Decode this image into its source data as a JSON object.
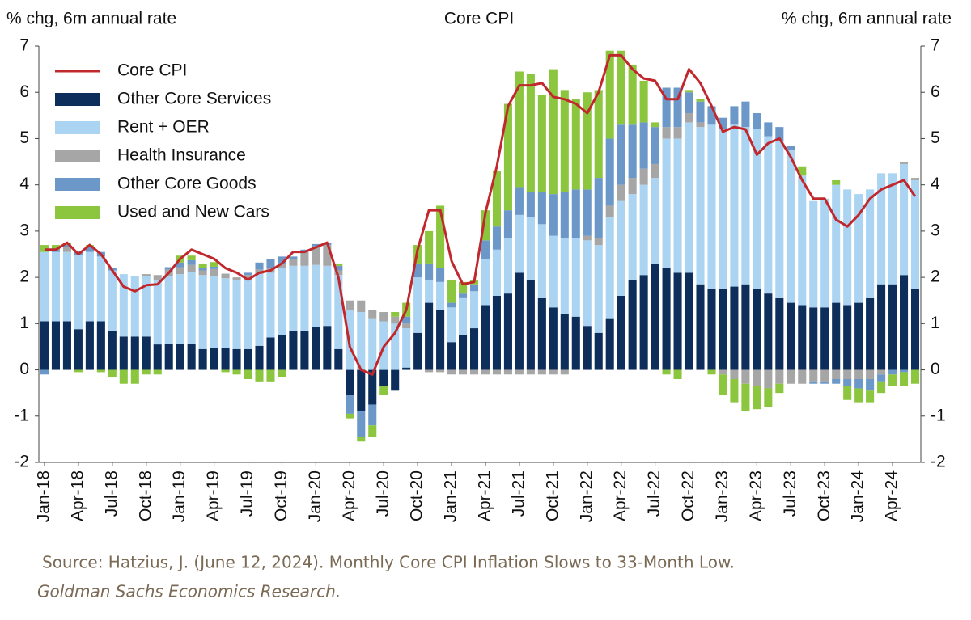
{
  "chart_data": {
    "type": "bar",
    "stacked": true,
    "title": "Core CPI",
    "y_label": "% chg, 6m annual rate",
    "y2_label": "% chg, 6m annual rate",
    "categories": [
      "Jan-18",
      null,
      null,
      "Apr-18",
      null,
      null,
      "Jul-18",
      null,
      null,
      "Oct-18",
      null,
      null,
      "Jan-19",
      null,
      null,
      "Apr-19",
      null,
      null,
      "Jul-19",
      null,
      null,
      "Oct-19",
      null,
      null,
      "Jan-20",
      null,
      null,
      "Apr-20",
      null,
      null,
      "Jul-20",
      null,
      null,
      "Oct-20",
      null,
      null,
      "Jan-21",
      null,
      null,
      "Apr-21",
      null,
      null,
      "Jul-21",
      null,
      null,
      "Oct-21",
      null,
      null,
      "Jan-22",
      null,
      null,
      "Apr-22",
      null,
      null,
      "Jul-22",
      null,
      null,
      "Oct-22",
      null,
      null,
      "Jan-23",
      null,
      null,
      "Apr-23",
      null,
      null,
      "Jul-23",
      null,
      null,
      "Oct-23",
      null,
      null,
      "Jan-24",
      null,
      null,
      "Apr-24",
      null,
      null
    ],
    "series": [
      {
        "name": "Core CPI",
        "type": "line",
        "color": "#c0282d",
        "values": [
          2.6,
          2.6,
          2.75,
          2.5,
          2.7,
          2.5,
          2.15,
          1.8,
          1.7,
          1.83,
          1.85,
          2.1,
          2.4,
          2.6,
          2.5,
          2.4,
          2.2,
          2.1,
          1.95,
          2.1,
          2.15,
          2.3,
          2.55,
          2.55,
          2.65,
          2.75,
          2.0,
          0.5,
          0.0,
          -0.1,
          0.5,
          0.8,
          1.3,
          2.6,
          3.45,
          3.45,
          2.35,
          1.85,
          1.9,
          3.4,
          4.4,
          5.7,
          6.15,
          6.15,
          6.2,
          5.9,
          5.85,
          5.75,
          5.55,
          6.0,
          6.8,
          6.8,
          6.5,
          6.3,
          6.25,
          5.85,
          5.85,
          6.5,
          6.2,
          5.7,
          5.15,
          5.25,
          5.2,
          4.65,
          4.9,
          5.0,
          4.6,
          4.1,
          3.7,
          3.7,
          3.25,
          3.1,
          3.35,
          3.7,
          3.9,
          4.0,
          4.1,
          3.75
        ]
      },
      {
        "name": "Other Core Services",
        "type": "bar",
        "color": "#0d2d5a",
        "values": [
          1.05,
          1.05,
          1.05,
          0.88,
          1.05,
          1.05,
          0.85,
          0.72,
          0.72,
          0.72,
          0.55,
          0.57,
          0.57,
          0.57,
          0.45,
          0.48,
          0.48,
          0.45,
          0.45,
          0.52,
          0.7,
          0.75,
          0.85,
          0.85,
          0.92,
          0.95,
          0.45,
          -0.55,
          -0.9,
          -0.75,
          -0.35,
          -0.45,
          0.05,
          0.8,
          1.45,
          1.3,
          0.6,
          0.75,
          0.9,
          1.4,
          1.6,
          1.65,
          2.1,
          1.95,
          1.55,
          1.35,
          1.2,
          1.15,
          0.95,
          0.8,
          1.1,
          1.6,
          1.95,
          2.05,
          2.3,
          2.2,
          2.1,
          2.1,
          1.85,
          1.75,
          1.75,
          1.8,
          1.85,
          1.75,
          1.65,
          1.55,
          1.45,
          1.4,
          1.35,
          1.35,
          1.45,
          1.4,
          1.45,
          1.55,
          1.85,
          1.85,
          2.05,
          1.75
        ]
      },
      {
        "name": "Rent + OER",
        "type": "bar",
        "color": "#aad4f1",
        "values": [
          1.5,
          1.5,
          1.5,
          1.6,
          1.5,
          1.4,
          1.3,
          1.35,
          1.3,
          1.3,
          1.4,
          1.45,
          1.5,
          1.55,
          1.6,
          1.55,
          1.5,
          1.5,
          1.5,
          1.55,
          1.4,
          1.45,
          1.4,
          1.4,
          1.35,
          1.3,
          1.6,
          1.3,
          1.25,
          1.1,
          1.05,
          1.0,
          0.85,
          1.2,
          0.5,
          0.6,
          0.75,
          0.8,
          0.8,
          1.0,
          1.0,
          1.2,
          1.25,
          1.35,
          1.6,
          1.55,
          1.65,
          1.7,
          1.85,
          1.9,
          2.2,
          2.05,
          1.85,
          1.95,
          1.85,
          2.8,
          2.9,
          3.25,
          3.4,
          3.55,
          3.45,
          3.5,
          3.4,
          3.45,
          3.4,
          3.4,
          3.3,
          2.8,
          2.3,
          2.35,
          2.55,
          2.5,
          2.35,
          2.35,
          2.4,
          2.4,
          2.4,
          2.35
        ]
      },
      {
        "name": "Health Insurance",
        "type": "bar",
        "color": "#a6a6a6",
        "values": [
          0,
          0,
          0.1,
          0,
          0,
          0,
          0,
          0,
          0,
          0.05,
          0.1,
          0.15,
          0.15,
          0.15,
          0.1,
          0.15,
          0.1,
          0.05,
          0.1,
          0.1,
          0.1,
          0.1,
          0.15,
          0.3,
          0.4,
          0.45,
          0.1,
          0.2,
          0.25,
          0.2,
          0.2,
          0.15,
          0.1,
          0,
          -0.05,
          -0.05,
          -0.1,
          -0.1,
          -0.1,
          -0.1,
          -0.1,
          -0.1,
          -0.1,
          -0.1,
          -0.1,
          -0.1,
          -0.1,
          0,
          0.1,
          0.15,
          0.25,
          0.35,
          0.35,
          0.35,
          0.3,
          0.25,
          0.25,
          0.2,
          0.1,
          0,
          -0.1,
          -0.2,
          -0.3,
          -0.35,
          -0.4,
          -0.3,
          -0.3,
          -0.3,
          -0.25,
          -0.25,
          -0.2,
          -0.2,
          -0.2,
          -0.2,
          -0.1,
          0,
          0.05,
          0.05
        ]
      },
      {
        "name": "Other Core Goods",
        "type": "bar",
        "color": "#6b98c9",
        "values": [
          -0.1,
          0.05,
          0.05,
          0.1,
          0.1,
          0.1,
          0.05,
          0,
          0,
          0,
          0,
          0.05,
          0.1,
          0.1,
          0.05,
          0.05,
          0,
          0,
          0.05,
          0.15,
          0.2,
          0.15,
          0.05,
          0.05,
          0.05,
          0.05,
          0.1,
          -0.4,
          -0.55,
          -0.45,
          0,
          0,
          0.15,
          0.3,
          0.35,
          0.3,
          0.1,
          0.1,
          0.15,
          0.4,
          0.5,
          0.6,
          0.6,
          0.55,
          0.7,
          0.9,
          1.0,
          1.05,
          1.0,
          1.3,
          1.45,
          1.3,
          1.15,
          1.0,
          0.8,
          0.85,
          0.85,
          0.45,
          0.45,
          0.4,
          0.25,
          0.4,
          0.55,
          0.35,
          0.3,
          0.3,
          0.1,
          0,
          -0.05,
          -0.05,
          -0.1,
          -0.15,
          -0.2,
          -0.25,
          -0.15,
          -0.1,
          -0.05,
          0
        ]
      },
      {
        "name": "Used and New Cars",
        "type": "bar",
        "color": "#8cc63f",
        "values": [
          0.15,
          0.1,
          0.05,
          -0.05,
          0.05,
          -0.05,
          -0.15,
          -0.3,
          -0.3,
          -0.1,
          -0.1,
          0,
          0.15,
          0.1,
          0.1,
          0.1,
          -0.05,
          -0.1,
          -0.2,
          -0.25,
          -0.25,
          -0.15,
          0,
          0,
          0,
          0,
          0.05,
          -0.1,
          -0.1,
          -0.25,
          -0.2,
          0.1,
          0.3,
          0.4,
          0.7,
          1.35,
          0.5,
          0.25,
          0.1,
          0.65,
          1.2,
          2.3,
          2.5,
          2.55,
          2.1,
          2.7,
          2.2,
          1.95,
          2.1,
          1.9,
          1.9,
          1.6,
          1.3,
          0.9,
          0.1,
          -0.1,
          -0.2,
          0.05,
          0.05,
          -0.1,
          -0.45,
          -0.5,
          -0.6,
          -0.5,
          -0.4,
          -0.2,
          0,
          0.2,
          0,
          0,
          0.1,
          -0.3,
          -0.3,
          -0.25,
          -0.25,
          -0.25,
          -0.3,
          -0.3
        ]
      }
    ],
    "ylim": [
      -2,
      7
    ],
    "yticks": [
      -2,
      -1,
      0,
      1,
      2,
      3,
      4,
      5,
      6,
      7
    ],
    "y2lim": [
      -2,
      7
    ],
    "y2ticks": [
      -2,
      -1,
      0,
      1,
      2,
      3,
      4,
      5,
      6,
      7
    ],
    "grid": false,
    "legend": "upper left"
  },
  "source": {
    "citation": "Source: Hatzius, J. (June 12, 2024). Monthly Core CPI Inflation Slows to 33-Month Low.",
    "publisher": "Goldman Sachs Economics Research."
  }
}
